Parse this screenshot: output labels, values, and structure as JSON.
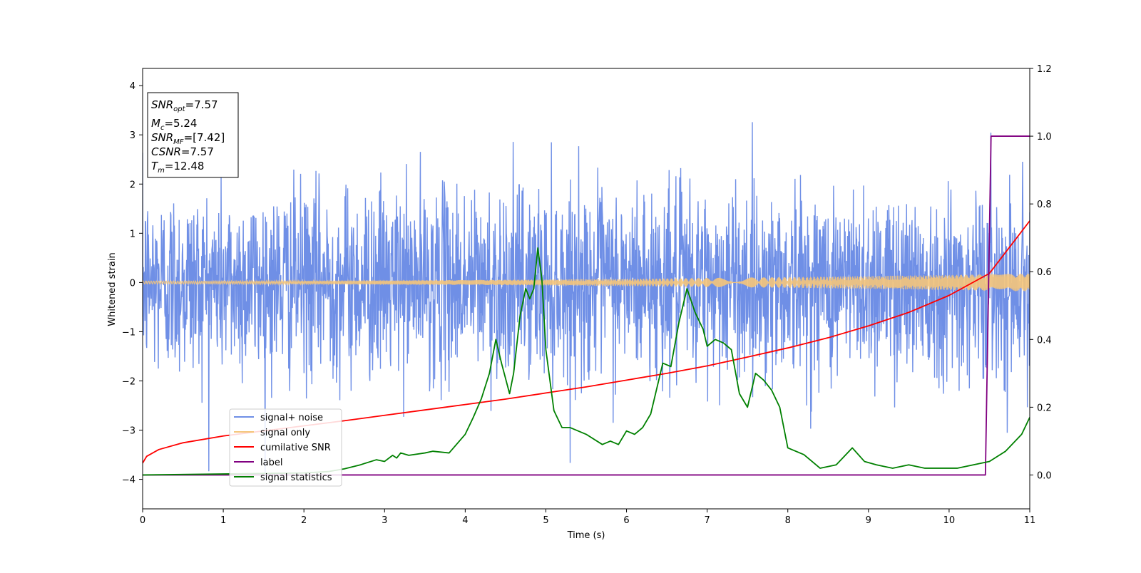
{
  "chart_data": {
    "type": "line",
    "xlabel": "Time (s)",
    "ylabel": "Whitened strain",
    "xlim": [
      0,
      11
    ],
    "ylim": [
      -4.6,
      4.35
    ],
    "y2lim": [
      -0.1,
      1.2
    ],
    "xticks": [
      "0",
      "1",
      "2",
      "3",
      "4",
      "5",
      "6",
      "7",
      "8",
      "9",
      "10",
      "11"
    ],
    "yticks": [
      "4",
      "3",
      "2",
      "1",
      "0",
      "−1",
      "−2",
      "−3",
      "−4"
    ],
    "y2ticks": [
      "1.2",
      "1.0",
      "0.8",
      "0.6",
      "0.4",
      "0.2",
      "0.0"
    ],
    "grid": false,
    "legend_position": "lower-left",
    "info_box": {
      "lines": [
        {
          "var": "SNR",
          "sub": "opt",
          "value": "=7.57"
        },
        {
          "var": "M",
          "sub": "c",
          "value": "=5.24"
        },
        {
          "var": "SNR",
          "sub": "MF",
          "value": "=[7.42]"
        },
        {
          "var": "CSNR",
          "sub": "",
          "value": "=7.57"
        },
        {
          "var": "T",
          "sub": "m",
          "value": "=12.48"
        }
      ]
    },
    "series": [
      {
        "name": "signal+ noise",
        "color": "#6f8fe6",
        "axis": "left",
        "kind": "noise",
        "amplitude_sd": 0.95
      },
      {
        "name": "signal only",
        "color": "#f5c57a",
        "axis": "left",
        "kind": "chirp",
        "amp_start": 0.03,
        "amp_end": 0.18
      },
      {
        "name": "cumilative SNR",
        "color": "#ff0000",
        "axis": "right",
        "x": [
          0,
          0.05,
          0.2,
          0.5,
          1,
          1.5,
          2,
          2.5,
          3,
          3.5,
          4,
          4.5,
          5,
          5.5,
          6,
          6.5,
          7,
          7.5,
          8,
          8.5,
          9,
          9.5,
          10,
          10.5,
          11
        ],
        "y": [
          0.035,
          0.055,
          0.075,
          0.095,
          0.115,
          0.13,
          0.145,
          0.16,
          0.176,
          0.192,
          0.208,
          0.224,
          0.242,
          0.26,
          0.28,
          0.3,
          0.322,
          0.348,
          0.375,
          0.405,
          0.44,
          0.48,
          0.53,
          0.595,
          0.75
        ]
      },
      {
        "name": "label",
        "color": "#800080",
        "axis": "right",
        "x": [
          0,
          10.45,
          10.52,
          11
        ],
        "y": [
          0,
          0,
          1,
          1
        ]
      },
      {
        "name": "signal statistics",
        "color": "#008000",
        "axis": "right",
        "x": [
          0,
          1,
          2,
          2.3,
          2.5,
          2.7,
          2.9,
          3.0,
          3.1,
          3.15,
          3.2,
          3.3,
          3.5,
          3.6,
          3.8,
          4.0,
          4.1,
          4.2,
          4.3,
          4.38,
          4.45,
          4.55,
          4.6,
          4.68,
          4.75,
          4.8,
          4.85,
          4.9,
          4.95,
          5.0,
          5.1,
          5.2,
          5.3,
          5.5,
          5.7,
          5.8,
          5.9,
          6.0,
          6.1,
          6.2,
          6.3,
          6.45,
          6.55,
          6.65,
          6.75,
          6.85,
          6.95,
          7.0,
          7.1,
          7.2,
          7.3,
          7.4,
          7.5,
          7.6,
          7.7,
          7.8,
          7.9,
          8.0,
          8.2,
          8.4,
          8.6,
          8.8,
          8.95,
          9.1,
          9.3,
          9.5,
          9.7,
          9.9,
          10.1,
          10.3,
          10.5,
          10.7,
          10.9,
          11
        ],
        "y": [
          0.0,
          0.003,
          0.006,
          0.01,
          0.018,
          0.03,
          0.045,
          0.04,
          0.058,
          0.05,
          0.065,
          0.058,
          0.065,
          0.07,
          0.065,
          0.12,
          0.17,
          0.225,
          0.3,
          0.4,
          0.33,
          0.24,
          0.3,
          0.47,
          0.55,
          0.52,
          0.55,
          0.67,
          0.58,
          0.37,
          0.19,
          0.14,
          0.14,
          0.12,
          0.09,
          0.1,
          0.09,
          0.13,
          0.12,
          0.14,
          0.18,
          0.33,
          0.32,
          0.45,
          0.55,
          0.48,
          0.43,
          0.38,
          0.4,
          0.39,
          0.37,
          0.24,
          0.2,
          0.3,
          0.28,
          0.25,
          0.2,
          0.08,
          0.06,
          0.02,
          0.03,
          0.08,
          0.04,
          0.03,
          0.02,
          0.03,
          0.02,
          0.02,
          0.02,
          0.03,
          0.04,
          0.07,
          0.12,
          0.17
        ]
      }
    ]
  }
}
